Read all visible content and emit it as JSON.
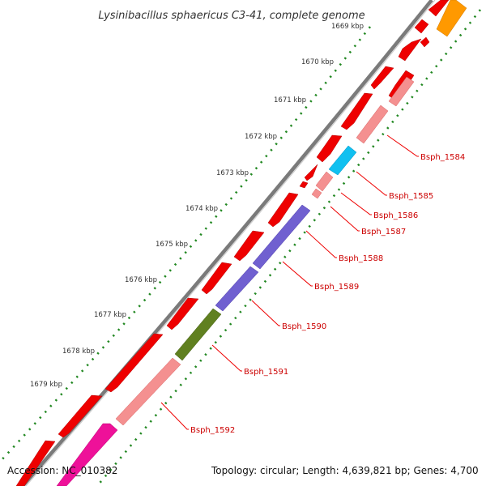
{
  "title": "Lysinibacillus sphaericus C3-41, complete genome",
  "footer": {
    "accession": "Accession: NC_010382",
    "info": "Topology: circular; Length: 4,639,821 bp; Genes: 4,700"
  },
  "ticks": [
    {
      "label": "1669 kbp"
    },
    {
      "label": "1670 kbp"
    },
    {
      "label": "1671 kbp"
    },
    {
      "label": "1672 kbp"
    },
    {
      "label": "1673 kbp"
    },
    {
      "label": "1674 kbp"
    },
    {
      "label": "1675 kbp"
    },
    {
      "label": "1676 kbp"
    },
    {
      "label": "1677 kbp"
    },
    {
      "label": "1678 kbp"
    },
    {
      "label": "1679 kbp"
    }
  ],
  "gene_labels": [
    {
      "name": "Bsph_1584"
    },
    {
      "name": "Bsph_1585"
    },
    {
      "name": "Bsph_1586"
    },
    {
      "name": "Bsph_1587"
    },
    {
      "name": "Bsph_1588"
    },
    {
      "name": "Bsph_1589"
    },
    {
      "name": "Bsph_1590"
    },
    {
      "name": "Bsph_1591"
    },
    {
      "name": "Bsph_1592"
    }
  ],
  "colors": {
    "backbone": "#7a7a7a",
    "forward_gene": "#ee0000",
    "reverse_gene": "#f49090",
    "cyan_gene": "#10c0f0",
    "purple_gene": "#7060d0",
    "olive_gene": "#608020",
    "orange_gene": "#ff9900",
    "magenta_gene": "#ee1199",
    "dots": "#228822",
    "label_red": "#cc0000"
  }
}
